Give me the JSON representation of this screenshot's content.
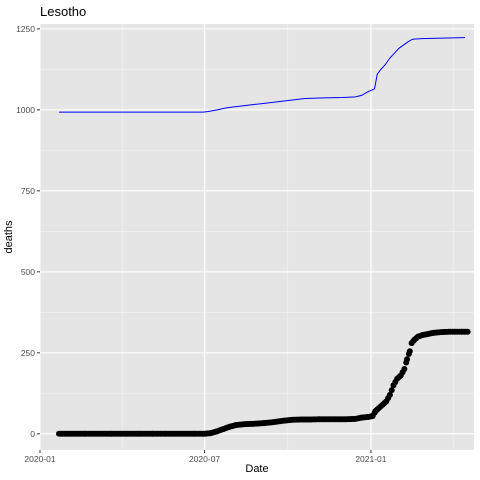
{
  "chart_data": {
    "type": "line+scatter",
    "title": "Lesotho",
    "xlabel": "Date",
    "ylabel": "deaths",
    "grid": true,
    "legend": "none",
    "x_type": "date",
    "xlim": [
      "2020-01-01",
      "2021-04-25"
    ],
    "ylim": [
      -50,
      1265
    ],
    "x_ticks": [
      {
        "date": "2020-01-01",
        "label": "2020-01"
      },
      {
        "date": "2020-07-01",
        "label": "2020-07"
      },
      {
        "date": "2021-01-01",
        "label": "2021-01"
      }
    ],
    "y_ticks": [
      0,
      250,
      500,
      750,
      1000,
      1250
    ],
    "series": [
      {
        "kind": "line",
        "color": "#0000ff",
        "points": [
          [
            "2020-01-22",
            993
          ],
          [
            "2020-03-01",
            993
          ],
          [
            "2020-05-01",
            993
          ],
          [
            "2020-06-30",
            993
          ],
          [
            "2020-07-05",
            995
          ],
          [
            "2020-07-15",
            1000
          ],
          [
            "2020-07-25",
            1006
          ],
          [
            "2020-08-05",
            1010
          ],
          [
            "2020-08-20",
            1015
          ],
          [
            "2020-09-05",
            1020
          ],
          [
            "2020-09-20",
            1025
          ],
          [
            "2020-10-05",
            1030
          ],
          [
            "2020-10-20",
            1035
          ],
          [
            "2020-11-10",
            1037
          ],
          [
            "2020-12-01",
            1038
          ],
          [
            "2020-12-15",
            1040
          ],
          [
            "2020-12-22",
            1045
          ],
          [
            "2020-12-28",
            1055
          ],
          [
            "2021-01-01",
            1060
          ],
          [
            "2021-01-05",
            1065
          ],
          [
            "2021-01-08",
            1110
          ],
          [
            "2021-01-12",
            1125
          ],
          [
            "2021-01-17",
            1140
          ],
          [
            "2021-01-22",
            1160
          ],
          [
            "2021-01-27",
            1175
          ],
          [
            "2021-02-01",
            1190
          ],
          [
            "2021-02-06",
            1200
          ],
          [
            "2021-02-11",
            1210
          ],
          [
            "2021-02-16",
            1218
          ],
          [
            "2021-02-26",
            1220
          ],
          [
            "2021-03-15",
            1221
          ],
          [
            "2021-04-01",
            1222
          ],
          [
            "2021-04-15",
            1223
          ]
        ]
      },
      {
        "kind": "scatter",
        "color": "#000000",
        "points": [
          [
            "2020-01-22",
            0
          ],
          [
            "2020-02-05",
            0
          ],
          [
            "2020-02-20",
            0
          ],
          [
            "2020-03-05",
            0
          ],
          [
            "2020-03-20",
            0
          ],
          [
            "2020-04-05",
            0
          ],
          [
            "2020-04-20",
            0
          ],
          [
            "2020-05-05",
            0
          ],
          [
            "2020-05-20",
            0
          ],
          [
            "2020-06-05",
            0
          ],
          [
            "2020-06-20",
            0
          ],
          [
            "2020-07-01",
            0
          ],
          [
            "2020-07-08",
            2
          ],
          [
            "2020-07-15",
            8
          ],
          [
            "2020-07-22",
            15
          ],
          [
            "2020-07-29",
            22
          ],
          [
            "2020-08-05",
            27
          ],
          [
            "2020-08-15",
            30
          ],
          [
            "2020-08-25",
            31
          ],
          [
            "2020-09-05",
            33
          ],
          [
            "2020-09-15",
            36
          ],
          [
            "2020-09-25",
            40
          ],
          [
            "2020-10-05",
            43
          ],
          [
            "2020-10-15",
            44
          ],
          [
            "2020-10-25",
            44
          ],
          [
            "2020-11-05",
            45
          ],
          [
            "2020-11-15",
            45
          ],
          [
            "2020-11-25",
            45
          ],
          [
            "2020-12-05",
            45
          ],
          [
            "2020-12-15",
            46
          ],
          [
            "2020-12-22",
            50
          ],
          [
            "2020-12-29",
            52
          ],
          [
            "2021-01-03",
            55
          ],
          [
            "2021-01-06",
            70
          ],
          [
            "2021-01-10",
            80
          ],
          [
            "2021-01-14",
            90
          ],
          [
            "2021-01-18",
            100
          ],
          [
            "2021-01-22",
            120
          ],
          [
            "2021-01-26",
            150
          ],
          [
            "2021-01-30",
            170
          ],
          [
            "2021-02-03",
            180
          ],
          [
            "2021-02-07",
            200
          ],
          [
            "2021-02-10",
            230
          ],
          [
            "2021-02-13",
            255
          ],
          [
            "2021-02-15",
            280
          ],
          [
            "2021-02-18",
            290
          ],
          [
            "2021-02-22",
            300
          ],
          [
            "2021-02-27",
            305
          ],
          [
            "2021-03-05",
            308
          ],
          [
            "2021-03-12",
            312
          ],
          [
            "2021-03-20",
            314
          ],
          [
            "2021-03-28",
            315
          ],
          [
            "2021-04-05",
            315
          ],
          [
            "2021-04-12",
            315
          ],
          [
            "2021-04-18",
            315
          ]
        ]
      }
    ]
  }
}
